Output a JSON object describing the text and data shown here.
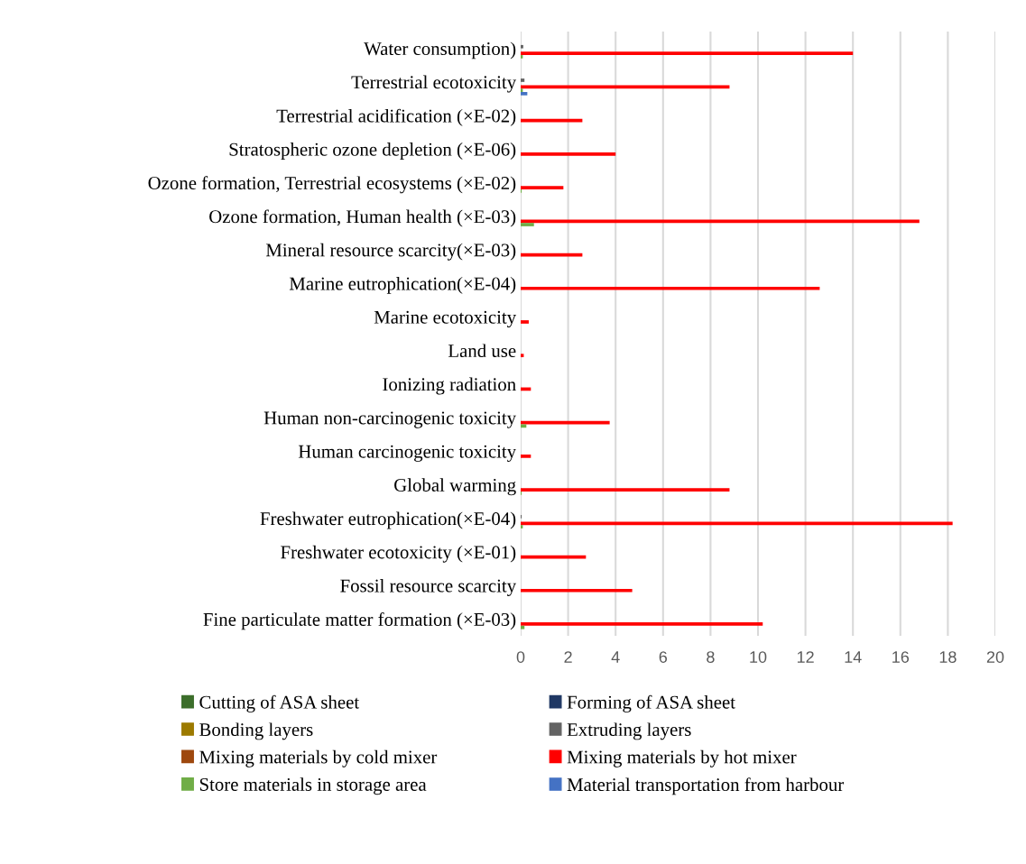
{
  "chart_data": {
    "type": "bar",
    "orientation": "horizontal",
    "grid": "x",
    "legend": "bottom",
    "categories": [
      "Water consumption)",
      "Terrestrial ecotoxicity",
      "Terrestrial acidification (×E-02)",
      "Stratospheric ozone depletion (×E-06)",
      "Ozone formation, Terrestrial ecosystems (×E-02)",
      "Ozone formation, Human health (×E-03)",
      "Mineral resource scarcity(×E-03)",
      "Marine eutrophication(×E-04)",
      "Marine ecotoxicity",
      "Land use",
      "Ionizing radiation",
      "Human non-carcinogenic toxicity",
      "Human carcinogenic toxicity",
      "Global warming",
      "Freshwater eutrophication(×E-04)",
      "Freshwater ecotoxicity (×E-01)",
      "Fossil resource scarcity",
      "Fine particulate matter formation (×E-03)"
    ],
    "xlim": [
      0,
      20
    ],
    "xticks": [
      0,
      2,
      4,
      6,
      8,
      10,
      12,
      14,
      16,
      18,
      20
    ],
    "series": [
      {
        "name": "Cutting of ASA sheet",
        "color": "#3c6e2b",
        "values": [
          0,
          0,
          0,
          0,
          0,
          0,
          0,
          0,
          0,
          0,
          0,
          0,
          0,
          0,
          0,
          0,
          0,
          0
        ]
      },
      {
        "name": "Forming of ASA sheet",
        "color": "#203864",
        "values": [
          0,
          0,
          0,
          0,
          0,
          0,
          0,
          0,
          0,
          0,
          0,
          0,
          0,
          0,
          0,
          0,
          0,
          0
        ]
      },
      {
        "name": "Bonding layers",
        "color": "#9c7a00",
        "values": [
          0,
          0,
          0,
          0,
          0,
          0,
          0,
          0,
          0,
          0,
          0,
          0,
          0,
          0,
          0,
          0,
          0,
          0
        ]
      },
      {
        "name": "Extruding layers",
        "color": "#636363",
        "values": [
          0.11,
          0.16,
          0,
          0,
          0,
          0,
          0,
          0,
          0,
          0,
          0,
          0,
          0,
          0,
          0.04,
          0,
          0,
          0
        ]
      },
      {
        "name": "Mixing materials by cold mixer",
        "color": "#9e480e",
        "values": [
          0,
          0,
          0,
          0,
          0,
          0,
          0,
          0,
          0,
          0,
          0,
          0,
          0,
          0,
          0,
          0,
          0,
          0
        ]
      },
      {
        "name": "Mixing materials by hot mixer",
        "color": "#ff0000",
        "values": [
          14.0,
          8.8,
          2.6,
          4.0,
          1.8,
          16.8,
          2.6,
          12.6,
          0.34,
          0.13,
          0.43,
          3.75,
          0.43,
          8.8,
          18.2,
          2.75,
          4.7,
          10.2
        ]
      },
      {
        "name": "Store materials in storage area",
        "color": "#70ad47",
        "values": [
          0.09,
          0.09,
          0,
          0,
          0.04,
          0.56,
          0,
          0,
          0,
          0,
          0,
          0.24,
          0,
          0.04,
          0.09,
          0,
          0,
          0.16
        ]
      },
      {
        "name": "Material transportation from harbour",
        "color": "#4472c4",
        "values": [
          0,
          0.28,
          0,
          0,
          0,
          0,
          0,
          0,
          0,
          0,
          0,
          0,
          0,
          0,
          0,
          0,
          0,
          0
        ]
      }
    ]
  }
}
